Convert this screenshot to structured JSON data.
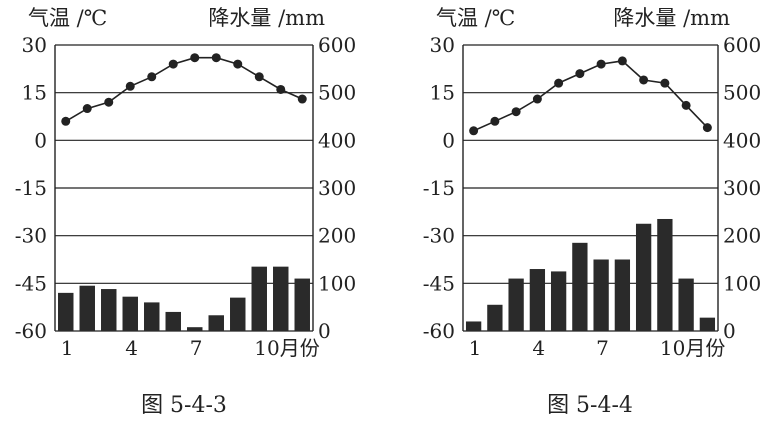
{
  "charts": [
    {
      "caption": "图 5-4-3",
      "chart_data": {
        "type": "bar+line",
        "categories": [
          "1",
          "2",
          "3",
          "4",
          "5",
          "6",
          "7",
          "8",
          "9",
          "10",
          "11",
          "12"
        ],
        "x_tick_labels": [
          "1",
          "4",
          "7",
          "10月份"
        ],
        "temp_label": "气温 /℃",
        "precip_label": "降水量 /mm",
        "temp_ticks": [
          "30",
          "15",
          "0",
          "-15",
          "-30",
          "-45",
          "-60"
        ],
        "precip_ticks": [
          "600",
          "500",
          "400",
          "300",
          "200",
          "100",
          "0"
        ],
        "temp_range": [
          -60,
          30
        ],
        "precip_range": [
          0,
          600
        ],
        "grid": true,
        "series": [
          {
            "kind": "line",
            "axis": "temperature",
            "values": [
              6,
              10,
              12,
              17,
              20,
              24,
              26,
              26,
              24,
              20,
              16,
              13
            ]
          },
          {
            "kind": "bar",
            "axis": "precipitation",
            "values": [
              80,
              95,
              88,
              72,
              60,
              40,
              8,
              33,
              70,
              135,
              135,
              110
            ]
          }
        ]
      }
    },
    {
      "caption": "图 5-4-4",
      "chart_data": {
        "type": "bar+line",
        "categories": [
          "1",
          "2",
          "3",
          "4",
          "5",
          "6",
          "7",
          "8",
          "9",
          "10",
          "11",
          "12"
        ],
        "x_tick_labels": [
          "1",
          "4",
          "7",
          "10月份"
        ],
        "temp_label": "气温 /℃",
        "precip_label": "降水量 /mm",
        "temp_ticks": [
          "30",
          "15",
          "0",
          "-15",
          "-30",
          "-45",
          "-60"
        ],
        "precip_ticks": [
          "600",
          "500",
          "400",
          "300",
          "200",
          "100",
          "0"
        ],
        "temp_range": [
          -60,
          30
        ],
        "precip_range": [
          0,
          600
        ],
        "grid": true,
        "series": [
          {
            "kind": "line",
            "axis": "temperature",
            "values": [
              3,
              6,
              9,
              13,
              18,
              21,
              24,
              25,
              19,
              18,
              11,
              4
            ]
          },
          {
            "kind": "bar",
            "axis": "precipitation",
            "values": [
              20,
              55,
              110,
              130,
              125,
              185,
              150,
              150,
              225,
              235,
              110,
              28
            ]
          }
        ]
      }
    }
  ]
}
